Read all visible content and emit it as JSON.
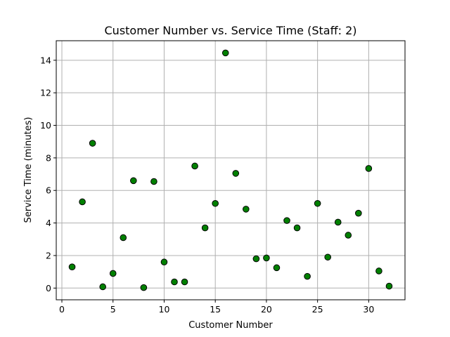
{
  "chart_data": {
    "type": "scatter",
    "title": "Customer Number vs. Service Time (Staff: 2)",
    "xlabel": "Customer Number",
    "ylabel": "Service Time (minutes)",
    "xlim": [
      -0.55,
      33.55
    ],
    "ylim": [
      -0.72,
      15.2
    ],
    "xticks": [
      0,
      5,
      10,
      15,
      20,
      25,
      30
    ],
    "yticks": [
      0,
      2,
      4,
      6,
      8,
      10,
      12,
      14
    ],
    "grid": true,
    "marker_color": "#008000",
    "marker_edge": "#000000",
    "series": [
      {
        "x": [
          1,
          2,
          3,
          4,
          5,
          6,
          7,
          8,
          9,
          10,
          11,
          12,
          13,
          14,
          15,
          16,
          17,
          18,
          19,
          20,
          21,
          22,
          23,
          24,
          25,
          26,
          27,
          28,
          29,
          30,
          31,
          32
        ],
        "y": [
          1.3,
          5.3,
          8.9,
          0.08,
          0.9,
          3.1,
          6.6,
          0.03,
          6.55,
          1.6,
          0.38,
          0.38,
          7.5,
          3.7,
          5.2,
          14.45,
          7.05,
          4.85,
          1.8,
          1.85,
          1.25,
          4.15,
          3.7,
          0.72,
          5.2,
          1.9,
          4.05,
          3.25,
          4.6,
          7.35,
          1.05,
          0.12
        ]
      }
    ]
  }
}
